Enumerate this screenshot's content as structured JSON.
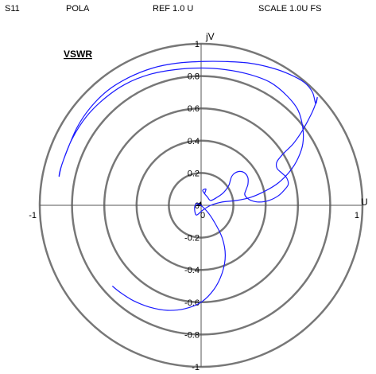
{
  "header": {
    "param": "S11",
    "format": "POLA",
    "reference": "REF  1.0 U",
    "scale": "SCALE  1.0U FS"
  },
  "chart_data": {
    "type": "polar",
    "title": "VSWR",
    "x_axis_label": "U",
    "y_axis_label": "jV",
    "ring_labels": [
      "1",
      "0.8",
      "0.6",
      "0.4",
      "0.2",
      "0",
      "-0.2",
      "-0.4",
      "-0.6",
      "-0.8",
      "-1"
    ],
    "x_tick_labels": [
      "-1",
      "0",
      "1"
    ],
    "grid_radii": [
      0.2,
      0.4,
      0.6,
      0.8,
      1.0
    ],
    "range": [
      -1,
      1
    ],
    "colors": {
      "trace": "#1a1aff",
      "grid": "#777777",
      "axis": "#555555"
    },
    "series": [
      {
        "points": [
          [
            0.02,
            0.07
          ],
          [
            0.03,
            0.1
          ],
          [
            0.01,
            0.09
          ],
          [
            0.04,
            0.05
          ],
          [
            0.06,
            0.03
          ],
          [
            0.1,
            0.05
          ],
          [
            0.14,
            0.08
          ],
          [
            0.17,
            0.12
          ],
          [
            0.18,
            0.15
          ],
          [
            0.19,
            0.18
          ],
          [
            0.21,
            0.2
          ],
          [
            0.24,
            0.21
          ],
          [
            0.27,
            0.2
          ],
          [
            0.29,
            0.17
          ],
          [
            0.29,
            0.13
          ],
          [
            0.28,
            0.1
          ],
          [
            0.27,
            0.07
          ],
          [
            0.28,
            0.05
          ],
          [
            0.31,
            0.03
          ],
          [
            0.36,
            0.02
          ],
          [
            0.42,
            0.03
          ],
          [
            0.48,
            0.06
          ],
          [
            0.52,
            0.1
          ],
          [
            0.54,
            0.13
          ],
          [
            0.53,
            0.17
          ],
          [
            0.5,
            0.2
          ],
          [
            0.47,
            0.23
          ],
          [
            0.47,
            0.27
          ],
          [
            0.51,
            0.32
          ],
          [
            0.57,
            0.38
          ],
          [
            0.62,
            0.45
          ],
          [
            0.66,
            0.52
          ],
          [
            0.69,
            0.58
          ],
          [
            0.71,
            0.63
          ],
          [
            0.72,
            0.67
          ],
          [
            0.71,
            0.63
          ],
          [
            0.69,
            0.7
          ],
          [
            0.64,
            0.76
          ],
          [
            0.55,
            0.81
          ],
          [
            0.44,
            0.85
          ],
          [
            0.3,
            0.88
          ],
          [
            0.15,
            0.89
          ],
          [
            0.0,
            0.89
          ],
          [
            -0.15,
            0.88
          ],
          [
            -0.3,
            0.85
          ],
          [
            -0.45,
            0.79
          ],
          [
            -0.58,
            0.71
          ],
          [
            -0.69,
            0.6
          ],
          [
            -0.77,
            0.48
          ],
          [
            -0.83,
            0.34
          ],
          [
            -0.87,
            0.23
          ],
          [
            -0.88,
            0.18
          ],
          [
            -0.86,
            0.26
          ],
          [
            -0.8,
            0.41
          ],
          [
            -0.71,
            0.55
          ],
          [
            -0.6,
            0.66
          ],
          [
            -0.47,
            0.75
          ],
          [
            -0.32,
            0.81
          ],
          [
            -0.16,
            0.84
          ],
          [
            0.0,
            0.85
          ],
          [
            0.15,
            0.84
          ],
          [
            0.3,
            0.81
          ],
          [
            0.43,
            0.76
          ],
          [
            0.53,
            0.68
          ],
          [
            0.6,
            0.59
          ],
          [
            0.63,
            0.48
          ],
          [
            0.63,
            0.38
          ],
          [
            0.6,
            0.29
          ],
          [
            0.55,
            0.21
          ],
          [
            0.48,
            0.14
          ],
          [
            0.4,
            0.09
          ],
          [
            0.31,
            0.05
          ],
          [
            0.22,
            0.03
          ],
          [
            0.13,
            0.02
          ],
          [
            0.06,
            0.0
          ],
          [
            0.01,
            -0.03
          ],
          [
            -0.03,
            -0.06
          ],
          [
            -0.04,
            -0.01
          ],
          [
            -0.02,
            0.01
          ],
          [
            0.03,
            -0.03
          ],
          [
            0.08,
            -0.1
          ],
          [
            0.13,
            -0.2
          ],
          [
            0.15,
            -0.31
          ],
          [
            0.13,
            -0.42
          ],
          [
            0.08,
            -0.52
          ],
          [
            0.0,
            -0.6
          ],
          [
            -0.1,
            -0.64
          ],
          [
            -0.21,
            -0.65
          ],
          [
            -0.32,
            -0.63
          ],
          [
            -0.42,
            -0.59
          ],
          [
            -0.5,
            -0.54
          ],
          [
            -0.55,
            -0.5
          ]
        ]
      }
    ]
  }
}
